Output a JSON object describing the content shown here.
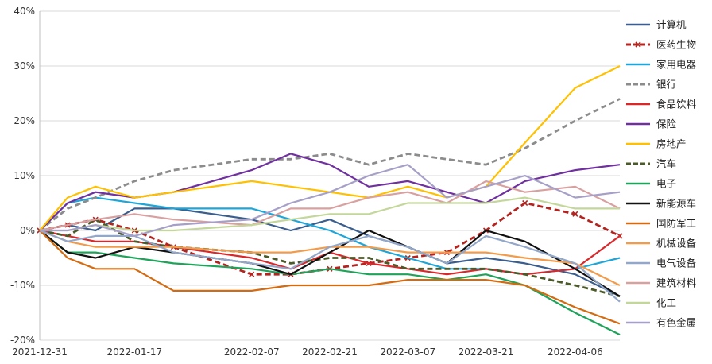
{
  "chart_data": {
    "type": "line",
    "title": "",
    "xlabel": "",
    "ylabel": "",
    "ylim": [
      -20,
      40
    ],
    "y_unit": "%",
    "y_ticks": [
      -20,
      -10,
      0,
      10,
      20,
      30,
      40
    ],
    "y_tick_labels": [
      "-20%",
      "-10%",
      "0%",
      "10%",
      "20%",
      "30%",
      "40%"
    ],
    "grid": "horizontal",
    "legend_position": "right",
    "x": [
      "2021-12-31",
      "2022-01-05",
      "2022-01-10",
      "2022-01-17",
      "2022-01-24",
      "2022-02-07",
      "2022-02-14",
      "2022-02-21",
      "2022-02-28",
      "2022-03-07",
      "2022-03-14",
      "2022-03-21",
      "2022-03-28",
      "2022-04-06",
      "2022-04-14"
    ],
    "x_tick_labels": [
      "2021-12-31",
      "2022-01-17",
      "2022-02-07",
      "2022-02-21",
      "2022-03-07",
      "2022-03-21",
      "2022-04-06"
    ],
    "series": [
      {
        "name": "计算机",
        "color": "#3a5f8f",
        "dash": "solid",
        "marker": false,
        "values": [
          0,
          1,
          0,
          4,
          4,
          2,
          0,
          2,
          -1,
          -3,
          -6,
          -5,
          -6,
          -8,
          -12
        ]
      },
      {
        "name": "医药生物",
        "color": "#b5231f",
        "dash": "dash",
        "marker": true,
        "values": [
          0,
          1,
          2,
          0,
          -3,
          -8,
          -8,
          -7,
          -6,
          -5,
          -4,
          0,
          5,
          3,
          -1
        ]
      },
      {
        "name": "家用电器",
        "color": "#1ea6d9",
        "dash": "solid",
        "marker": false,
        "values": [
          0,
          5,
          6,
          5,
          4,
          4,
          2,
          0,
          -3,
          -5,
          -7,
          -7,
          -8,
          -7,
          -5
        ]
      },
      {
        "name": "银行",
        "color": "#8c8c8c",
        "dash": "dash",
        "marker": false,
        "values": [
          0,
          4,
          6,
          9,
          11,
          13,
          13,
          14,
          12,
          14,
          13,
          12,
          15,
          20,
          24
        ]
      },
      {
        "name": "食品饮料",
        "color": "#d9272a",
        "dash": "solid",
        "marker": false,
        "values": [
          0,
          -1,
          -2,
          -2,
          -3,
          -5,
          -7,
          -4,
          -6,
          -7,
          -8,
          -7,
          -8,
          -7,
          -1
        ]
      },
      {
        "name": "保险",
        "color": "#7030a0",
        "dash": "solid",
        "marker": false,
        "values": [
          0,
          5,
          7,
          6,
          7,
          11,
          14,
          12,
          8,
          9,
          7,
          5,
          9,
          11,
          12
        ]
      },
      {
        "name": "房地产",
        "color": "#ffc000",
        "dash": "solid",
        "marker": false,
        "values": [
          0,
          6,
          8,
          6,
          7,
          9,
          8,
          7,
          6,
          8,
          6,
          8,
          16,
          26,
          30
        ]
      },
      {
        "name": "汽车",
        "color": "#4a5a28",
        "dash": "dash",
        "marker": false,
        "values": [
          0,
          -1,
          2,
          -2,
          -3,
          -4,
          -6,
          -5,
          -5,
          -7,
          -7,
          -7,
          -8,
          -10,
          -12
        ]
      },
      {
        "name": "电子",
        "color": "#1fa35b",
        "dash": "solid",
        "marker": false,
        "values": [
          0,
          -4,
          -4,
          -5,
          -6,
          -7,
          -8,
          -7,
          -8,
          -8,
          -9,
          -8,
          -10,
          -15,
          -19
        ]
      },
      {
        "name": "新能源车",
        "color": "#111111",
        "dash": "solid",
        "marker": false,
        "values": [
          0,
          -4,
          -5,
          -3,
          -4,
          -6,
          -8,
          -4,
          0,
          -3,
          -6,
          0,
          -2,
          -7,
          -12
        ]
      },
      {
        "name": "国防军工",
        "color": "#d46b10",
        "dash": "solid",
        "marker": false,
        "values": [
          0,
          -5,
          -7,
          -7,
          -11,
          -11,
          -10,
          -10,
          -10,
          -9,
          -9,
          -9,
          -10,
          -14,
          -17
        ]
      },
      {
        "name": "机械设备",
        "color": "#f29b4b",
        "dash": "solid",
        "marker": false,
        "values": [
          0,
          -2,
          -3,
          -3,
          -3,
          -4,
          -4,
          -3,
          -3,
          -4,
          -4,
          -4,
          -5,
          -6,
          -10
        ]
      },
      {
        "name": "电气设备",
        "color": "#92a7c9",
        "dash": "solid",
        "marker": false,
        "values": [
          0,
          -2,
          -1,
          -1,
          -4,
          -6,
          -7,
          -3,
          -1,
          -3,
          -6,
          -1,
          -3,
          -6,
          -13
        ]
      },
      {
        "name": "建筑材料",
        "color": "#d9a0a0",
        "dash": "solid",
        "marker": false,
        "values": [
          0,
          1,
          2,
          3,
          2,
          1,
          4,
          4,
          6,
          7,
          5,
          9,
          7,
          8,
          4
        ]
      },
      {
        "name": "化工",
        "color": "#c4d79b",
        "dash": "solid",
        "marker": false,
        "values": [
          0,
          0,
          1,
          0,
          0,
          1,
          2,
          3,
          3,
          5,
          5,
          5,
          6,
          4,
          4
        ]
      },
      {
        "name": "有色金属",
        "color": "#a6a0c8",
        "dash": "solid",
        "marker": false,
        "values": [
          0,
          0,
          1,
          -1,
          1,
          2,
          5,
          7,
          10,
          12,
          6,
          8,
          10,
          6,
          7
        ]
      }
    ]
  }
}
